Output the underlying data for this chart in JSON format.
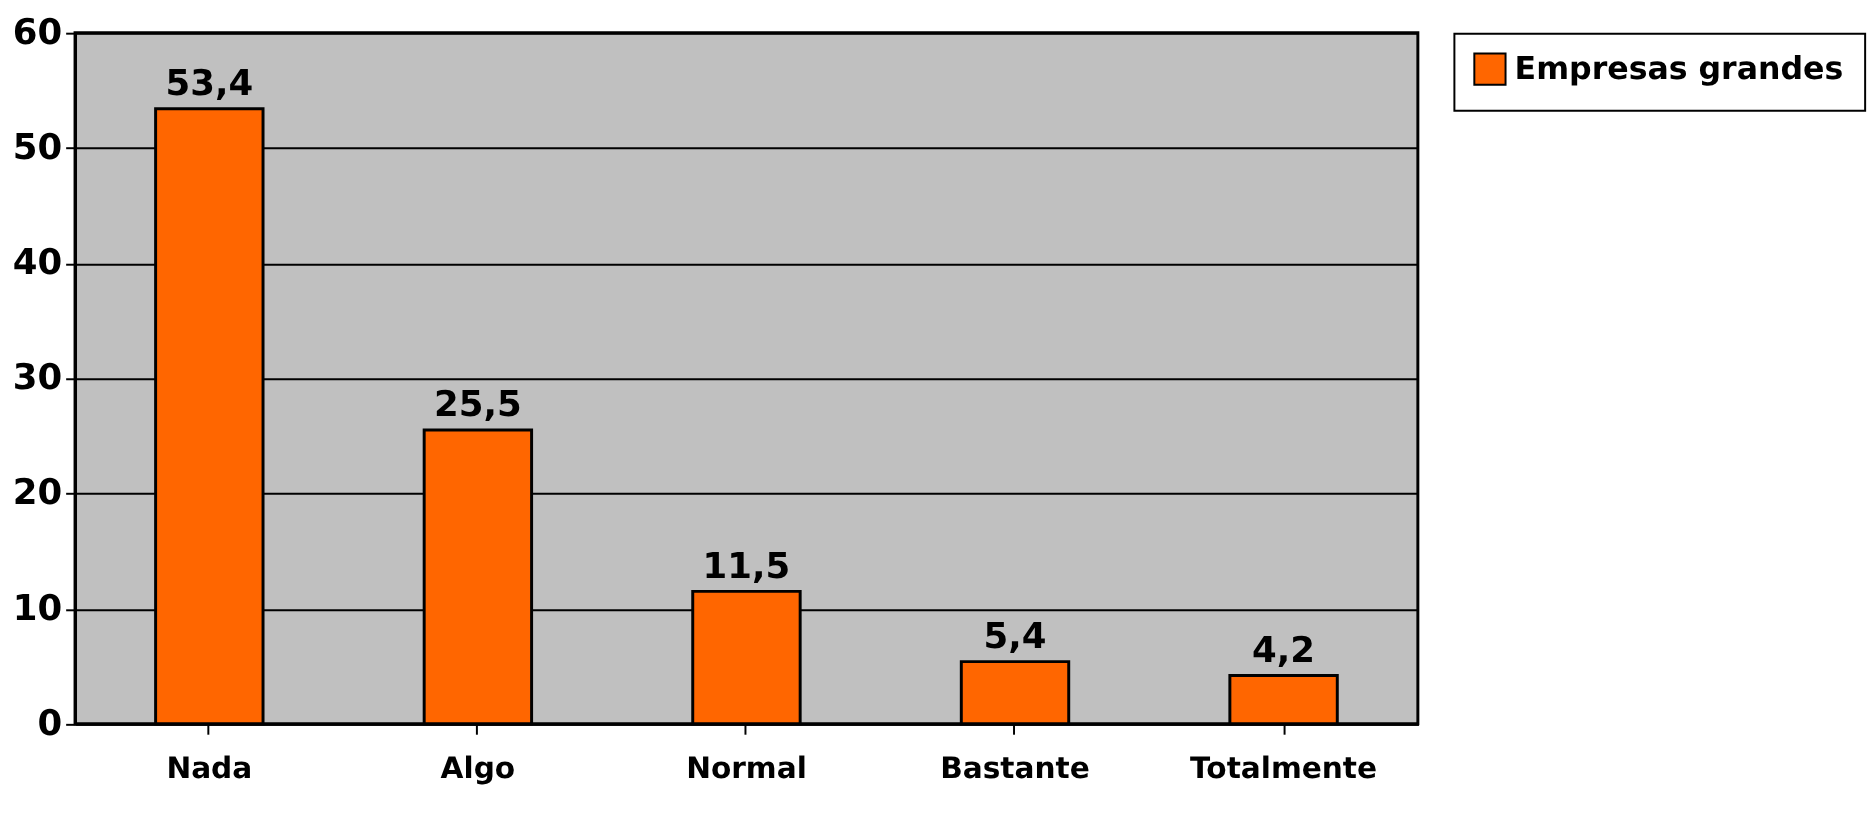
{
  "chart_data": {
    "type": "bar",
    "categories": [
      "Nada",
      "Algo",
      "Normal",
      "Bastante",
      "Totalmente"
    ],
    "series": [
      {
        "name": "Empresas grandes",
        "color": "#ff6600",
        "values": [
          53.4,
          25.5,
          11.5,
          5.4,
          4.2
        ],
        "value_labels": [
          "53,4",
          "25,5",
          "11,5",
          "5,4",
          "4,2"
        ]
      }
    ],
    "ylim": [
      0,
      60
    ],
    "yticks": [
      0,
      10,
      20,
      30,
      40,
      50,
      60
    ],
    "grid": "y",
    "legend": "right"
  }
}
